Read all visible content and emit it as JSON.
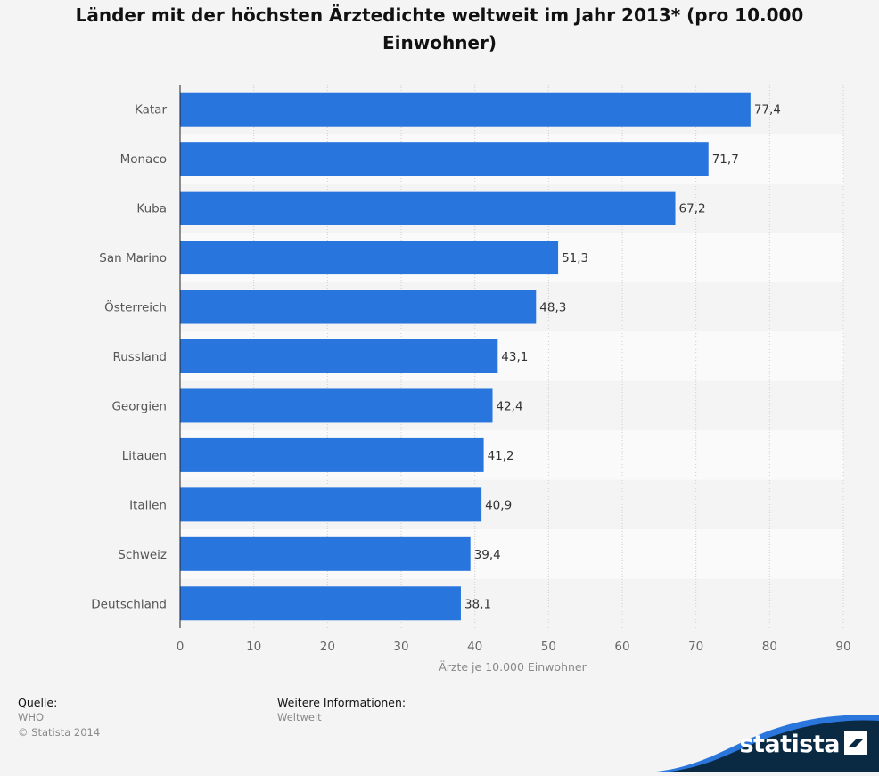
{
  "title": "Länder mit der höchsten Ärztedichte weltweit im Jahr 2013* (pro 10.000 Einwohner)",
  "chart_data": {
    "type": "bar",
    "orientation": "horizontal",
    "categories": [
      "Katar",
      "Monaco",
      "Kuba",
      "San Marino",
      "Österreich",
      "Russland",
      "Georgien",
      "Litauen",
      "Italien",
      "Schweiz",
      "Deutschland"
    ],
    "values": [
      77.4,
      71.7,
      67.2,
      51.3,
      48.3,
      43.1,
      42.4,
      41.2,
      40.9,
      39.4,
      38.1
    ],
    "value_labels": [
      "77,4",
      "71,7",
      "67,2",
      "51,3",
      "48,3",
      "43,1",
      "42,4",
      "41,2",
      "40,9",
      "39,4",
      "38,1"
    ],
    "xlabel": "Ärzte je 10.000 Einwohner",
    "xlim": [
      0,
      90
    ],
    "xticks": [
      0,
      10,
      20,
      30,
      40,
      50,
      60,
      70,
      80,
      90
    ],
    "grid": true,
    "bar_color": "#2876dd"
  },
  "footer": {
    "source_heading": "Quelle:",
    "source_lines": [
      "WHO",
      "© Statista 2014"
    ],
    "info_heading": "Weitere Informationen:",
    "info_lines": [
      "Weltweit"
    ]
  },
  "brand": {
    "name": "statista",
    "icon": "statista-logo-icon",
    "colors": {
      "navy": "#0a2a43",
      "blue": "#2a76dd"
    }
  }
}
